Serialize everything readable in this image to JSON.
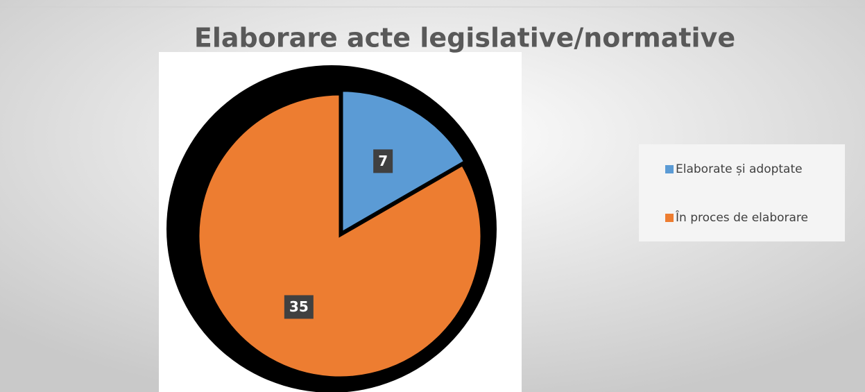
{
  "chart_data": {
    "type": "pie",
    "title": "Elaborare acte legislative/normative",
    "categories": [
      "Elaborate și adoptate",
      "În proces de elaborare"
    ],
    "values": [
      7,
      35
    ],
    "colors": [
      "#5b9bd5",
      "#ed7d31"
    ],
    "legend": "right"
  }
}
